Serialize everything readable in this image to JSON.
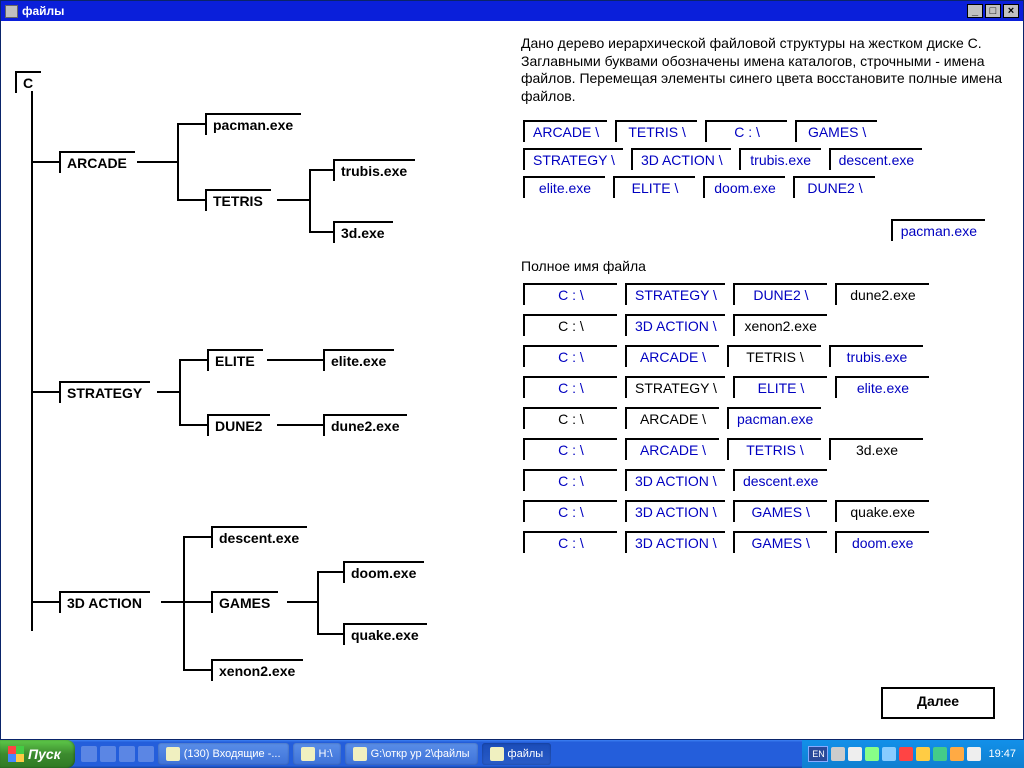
{
  "window": {
    "title": "файлы"
  },
  "instructions": "Дано дерево иерархической файловой структуры на жестком диске С. Заглавными буквами обозначены имена каталогов, строчными - имена файлов. Перемещая элементы синего цвета восстановите полные имена файлов.",
  "section_full_name": "Полное имя файла",
  "pool": [
    {
      "t": "ARCADE \\",
      "c": "blue"
    },
    {
      "t": "TETRIS \\",
      "c": "blue"
    },
    {
      "t": "C : \\",
      "c": "blue"
    },
    {
      "t": "GAMES \\",
      "c": "blue"
    },
    {
      "t": "STRATEGY \\",
      "c": "blue"
    },
    {
      "t": "3D ACTION \\",
      "c": "blue"
    },
    {
      "t": "trubis.exe",
      "c": "blue"
    },
    {
      "t": "descent.exe",
      "c": "blue"
    },
    {
      "t": "elite.exe",
      "c": "blue"
    },
    {
      "t": "ELITE \\",
      "c": "blue"
    },
    {
      "t": "doom.exe",
      "c": "blue"
    },
    {
      "t": "DUNE2 \\",
      "c": "blue"
    },
    {
      "t": "pacman.exe",
      "c": "blue"
    }
  ],
  "rows": [
    [
      {
        "t": "C : \\",
        "c": "blue"
      },
      {
        "t": "STRATEGY \\",
        "c": "blue"
      },
      {
        "t": "DUNE2 \\",
        "c": "blue"
      },
      {
        "t": "dune2.exe",
        "c": "black"
      }
    ],
    [
      {
        "t": "C : \\",
        "c": "black"
      },
      {
        "t": "3D ACTION \\",
        "c": "blue"
      },
      {
        "t": "xenon2.exe",
        "c": "black"
      }
    ],
    [
      {
        "t": "C : \\",
        "c": "blue"
      },
      {
        "t": "ARCADE \\",
        "c": "blue"
      },
      {
        "t": "TETRIS \\",
        "c": "black"
      },
      {
        "t": "trubis.exe",
        "c": "blue"
      }
    ],
    [
      {
        "t": "C : \\",
        "c": "blue"
      },
      {
        "t": "STRATEGY \\",
        "c": "black"
      },
      {
        "t": "ELITE \\",
        "c": "blue"
      },
      {
        "t": "elite.exe",
        "c": "blue"
      }
    ],
    [
      {
        "t": "C : \\",
        "c": "black"
      },
      {
        "t": "ARCADE \\",
        "c": "black"
      },
      {
        "t": "pacman.exe",
        "c": "blue"
      }
    ],
    [
      {
        "t": "C : \\",
        "c": "blue"
      },
      {
        "t": "ARCADE \\",
        "c": "blue"
      },
      {
        "t": "TETRIS \\",
        "c": "blue"
      },
      {
        "t": "3d.exe",
        "c": "black"
      }
    ],
    [
      {
        "t": "C : \\",
        "c": "blue"
      },
      {
        "t": "3D ACTION \\",
        "c": "blue"
      },
      {
        "t": "descent.exe",
        "c": "blue"
      }
    ],
    [
      {
        "t": "C : \\",
        "c": "blue"
      },
      {
        "t": "3D ACTION \\",
        "c": "blue"
      },
      {
        "t": "GAMES \\",
        "c": "blue"
      },
      {
        "t": "quake.exe",
        "c": "black"
      }
    ],
    [
      {
        "t": "C : \\",
        "c": "blue"
      },
      {
        "t": "3D ACTION \\",
        "c": "blue"
      },
      {
        "t": "GAMES \\",
        "c": "blue"
      },
      {
        "t": "doom.exe",
        "c": "blue"
      }
    ]
  ],
  "next_button": "Далее",
  "tree": {
    "root": "C",
    "arcade": "ARCADE",
    "tetris": "TETRIS",
    "pacman": "pacman.exe",
    "trubis": "trubis.exe",
    "threed": "3d.exe",
    "strategy": "STRATEGY",
    "elite_dir": "ELITE",
    "elite_exe": "elite.exe",
    "dune2_dir": "DUNE2",
    "dune2_exe": "dune2.exe",
    "action": "3D ACTION",
    "descent": "descent.exe",
    "games": "GAMES",
    "doom": "doom.exe",
    "quake": "quake.exe",
    "xenon": "xenon2.exe"
  },
  "taskbar": {
    "start": "Пуск",
    "items": [
      "(130) Входящие -...",
      "H:\\",
      "G:\\откр ур 2\\файлы",
      "файлы"
    ],
    "lang": "EN",
    "clock": "19:47"
  },
  "colors": {
    "blue_text": "#0000c0",
    "titlebar": "#0a1fda"
  }
}
